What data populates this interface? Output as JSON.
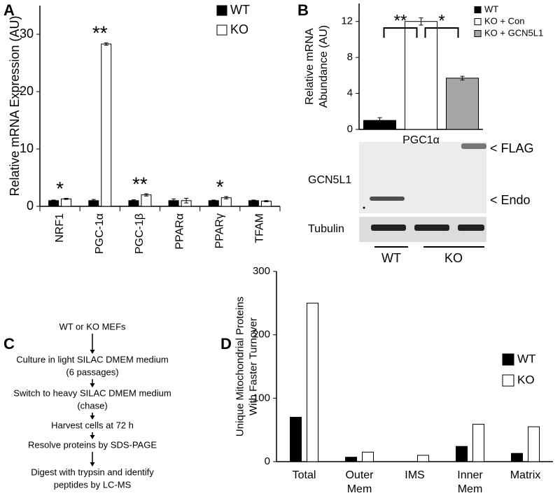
{
  "panel_labels": [
    "A",
    "B",
    "C",
    "D"
  ],
  "chart_data": [
    {
      "type": "bar",
      "ylabel": "Relative mRNA Expression (AU)",
      "categories": [
        "NRF1",
        "PGC-1α",
        "PGC-1β",
        "PPARα",
        "PPARγ",
        "TFAM"
      ],
      "series": [
        {
          "name": "WT",
          "color": "#000000",
          "values": [
            1.0,
            1.0,
            1.0,
            1.0,
            1.0,
            1.0
          ],
          "errors": [
            0.1,
            0.2,
            0.15,
            0.3,
            0.1,
            0.1
          ]
        },
        {
          "name": "KO",
          "color": "#ffffff",
          "values": [
            1.3,
            28.3,
            2.0,
            1.0,
            1.5,
            0.9
          ],
          "errors": [
            0.1,
            0.2,
            0.2,
            0.4,
            0.2,
            0.1
          ]
        }
      ],
      "significance": [
        "*",
        "**",
        "**",
        null,
        "*",
        null
      ],
      "ylim": [
        0,
        35
      ],
      "yticks": [
        0,
        10,
        20,
        30
      ]
    },
    {
      "type": "bar",
      "ylabel": [
        "Relative mRNA",
        "Abundance (AU)"
      ],
      "xlabel": "PGC1α",
      "categories": [
        "WT",
        "KO + Con",
        "KO + GCN5L1"
      ],
      "colors": [
        "#000000",
        "#ffffff",
        "#a6a6a6"
      ],
      "values": [
        1.0,
        12.0,
        5.7
      ],
      "errors": [
        0.3,
        0.4,
        0.2
      ],
      "comparisons": [
        {
          "between": [
            0,
            1
          ],
          "label": "**"
        },
        {
          "between": [
            1,
            2
          ],
          "label": "*"
        }
      ],
      "ylim": [
        0,
        14
      ],
      "yticks": [
        0,
        4,
        8,
        12
      ]
    },
    {
      "type": "bar",
      "ylabel": [
        "Unique Mitochondrial Proteins",
        "With Faster Turnover"
      ],
      "categories": [
        [
          "Total"
        ],
        [
          "Outer",
          "Mem"
        ],
        [
          "IMS"
        ],
        [
          "Inner",
          "Mem"
        ],
        [
          "Matrix"
        ]
      ],
      "series": [
        {
          "name": "WT",
          "color": "#000000",
          "values": [
            70,
            7,
            0,
            24,
            13
          ]
        },
        {
          "name": "KO",
          "color": "#ffffff",
          "values": [
            250,
            15,
            10,
            59,
            55
          ]
        }
      ],
      "ylim": [
        0,
        300
      ],
      "yticks": [
        0,
        100,
        200,
        300
      ]
    }
  ],
  "blot": {
    "protein_label": "GCN5L1",
    "band_labels": [
      "< FLAG",
      "< Endo"
    ],
    "loading_label": "Tubulin",
    "groups": [
      "WT",
      "KO"
    ]
  },
  "flowchart": {
    "steps": [
      [
        "WT or KO MEFs"
      ],
      [
        "Culture in light SILAC DMEM medium",
        "(6 passages)"
      ],
      [
        "Switch to heavy SILAC DMEM medium",
        "(chase)"
      ],
      [
        "Harvest cells at 72 h"
      ],
      [
        "Resolve proteins by SDS-PAGE"
      ],
      [
        "Digest with trypsin and identify",
        "peptides by LC-MS"
      ]
    ]
  }
}
